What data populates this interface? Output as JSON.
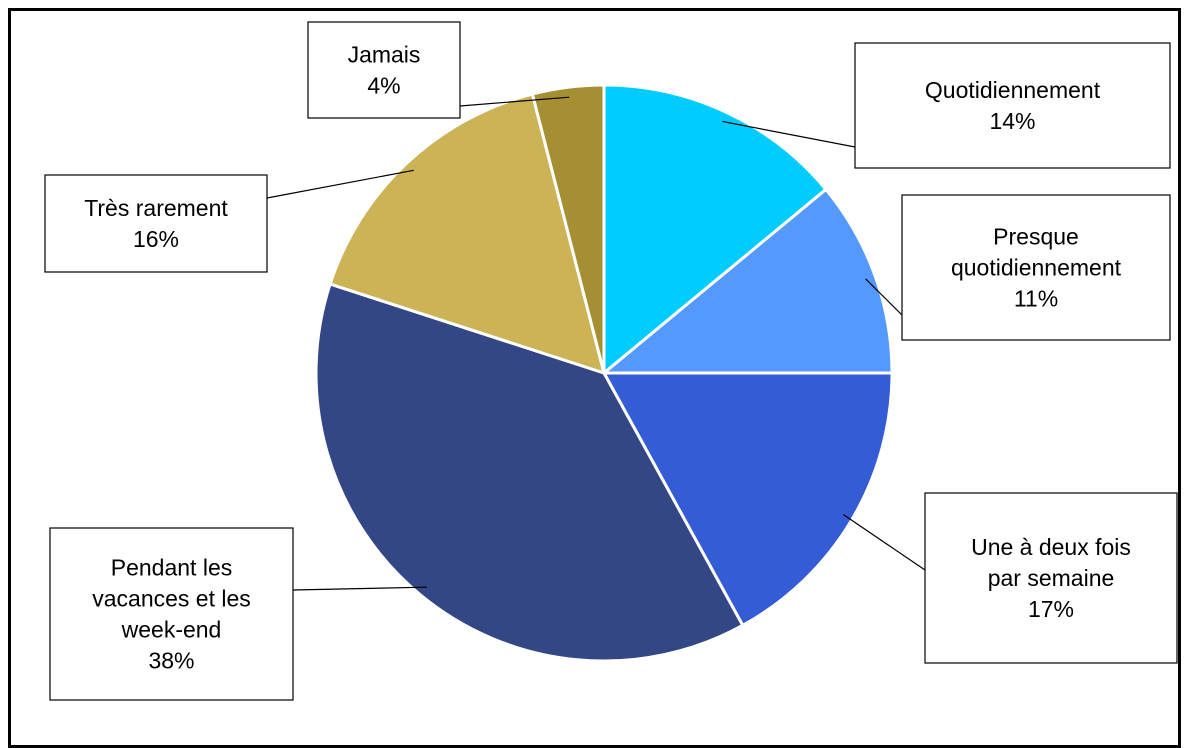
{
  "chart_data": {
    "type": "pie",
    "title": "",
    "slices": [
      {
        "label": [
          "Quotidiennement"
        ],
        "value_label": "14%",
        "value": 14,
        "color": "#00CCFF"
      },
      {
        "label": [
          "Presque",
          "quotidiennement"
        ],
        "value_label": "11%",
        "value": 11,
        "color": "#5599FF"
      },
      {
        "label": [
          "Une à deux fois",
          "par semaine"
        ],
        "value_label": "17%",
        "value": 17,
        "color": "#335CD6"
      },
      {
        "label": [
          "Pendant les",
          "vacances et les",
          "week-end"
        ],
        "value_label": "38%",
        "value": 38,
        "color": "#334686"
      },
      {
        "label": [
          "Très rarement"
        ],
        "value_label": "16%",
        "value": 16,
        "color": "#CCB456"
      },
      {
        "label": [
          "Jamais"
        ],
        "value_label": "4%",
        "value": 4,
        "color": "#A68F33"
      }
    ]
  }
}
